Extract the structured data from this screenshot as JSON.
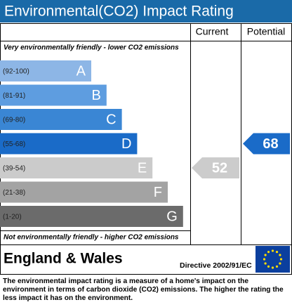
{
  "title": "Environmental(CO2) Impact Rating",
  "columns": {
    "current": "Current",
    "potential": "Potential"
  },
  "top_note": "Very environmentally friendly - lower CO2 emissions",
  "bands": [
    {
      "range": "(92-100)",
      "letter": "A",
      "color": "#8db6e6"
    },
    {
      "range": "(81-91)",
      "letter": "B",
      "color": "#5e9de0"
    },
    {
      "range": "(69-80)",
      "letter": "C",
      "color": "#3a86d4"
    },
    {
      "range": "(55-68)",
      "letter": "D",
      "color": "#1a6bc8"
    },
    {
      "range": "(39-54)",
      "letter": "E",
      "color": "#cbcbcb"
    },
    {
      "range": "(21-38)",
      "letter": "F",
      "color": "#a3a3a3"
    },
    {
      "range": "(1-20)",
      "letter": "G",
      "color": "#6b6b6b"
    }
  ],
  "bottom_note": "Not environmentally friendly - higher CO2 emissions",
  "current": {
    "value": 52,
    "color": "#cccccc"
  },
  "potential": {
    "value": 68,
    "color": "#1a6bc8"
  },
  "region": "England & Wales",
  "directive": "Directive 2002/91/EC",
  "description": "The environmental impact rating is a measure of a home's impact on the environment in terms of carbon dioxide (CO2) emissions. The higher the rating the less impact it has on the environment."
}
